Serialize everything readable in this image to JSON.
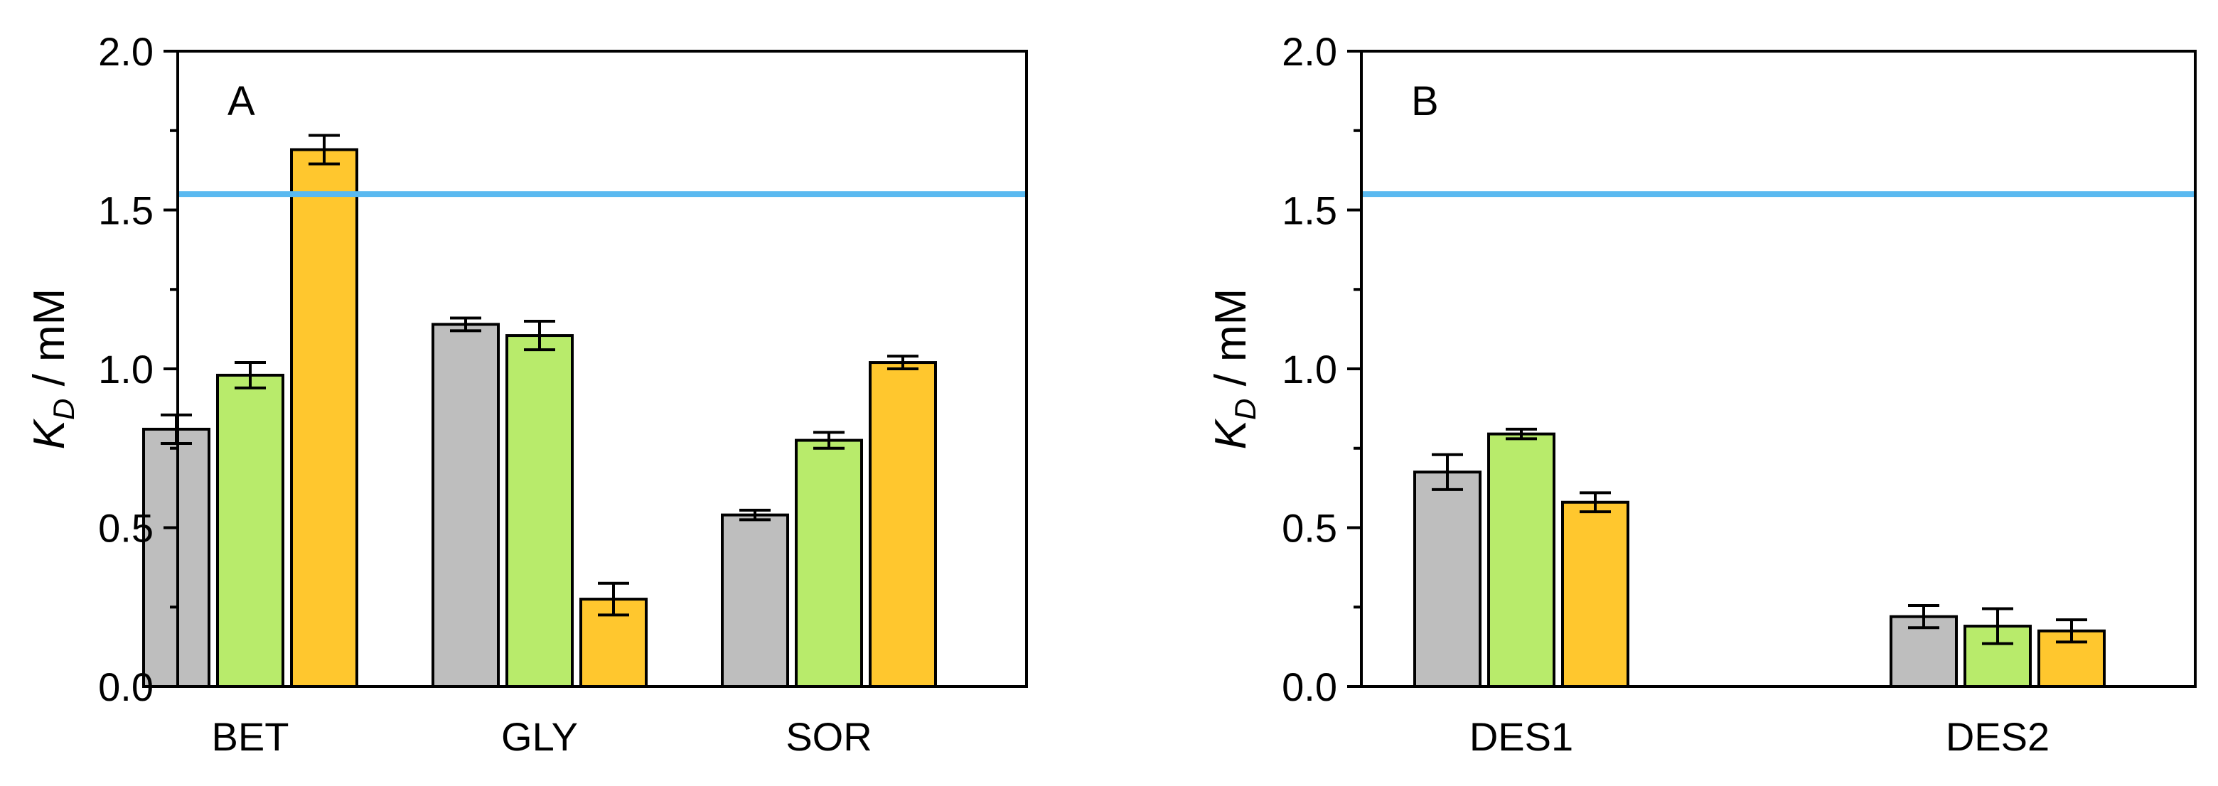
{
  "figure": {
    "colors": {
      "series": [
        "#bebebe",
        "#b8eb6b",
        "#ffc72e"
      ],
      "bar_outline": "#000000",
      "reference_line": "#5ab9f0"
    }
  },
  "chart_data": [
    {
      "type": "bar",
      "panel_label": "A",
      "ylabel_symbol": "K",
      "ylabel_subscript": "D",
      "ylabel_unit": " / mM",
      "ylim": [
        0,
        2.0
      ],
      "yticks": [
        0.0,
        0.5,
        1.0,
        1.5,
        2.0
      ],
      "ytick_labels": [
        "0.0",
        "0.5",
        "1.0",
        "1.5",
        "2.0"
      ],
      "categories": [
        "BET",
        "GLY",
        "SOR"
      ],
      "reference_line": 1.55,
      "series": [
        {
          "name": "gray",
          "values": [
            0.81,
            1.14,
            0.54
          ],
          "errors": [
            0.045,
            0.02,
            0.015
          ]
        },
        {
          "name": "green",
          "values": [
            0.98,
            1.105,
            0.775
          ],
          "errors": [
            0.04,
            0.045,
            0.025
          ]
        },
        {
          "name": "yellow",
          "values": [
            1.69,
            0.275,
            1.02
          ],
          "errors": [
            0.045,
            0.05,
            0.02
          ]
        }
      ]
    },
    {
      "type": "bar",
      "panel_label": "B",
      "ylabel_symbol": "K",
      "ylabel_subscript": "D",
      "ylabel_unit": " / mM",
      "ylim": [
        0,
        2.0
      ],
      "yticks": [
        0.0,
        0.5,
        1.0,
        1.5,
        2.0
      ],
      "ytick_labels": [
        "0.0",
        "0.5",
        "1.0",
        "1.5",
        "2.0"
      ],
      "categories": [
        "DES1",
        "DES2"
      ],
      "reference_line": 1.55,
      "series": [
        {
          "name": "gray",
          "values": [
            0.675,
            0.22
          ],
          "errors": [
            0.055,
            0.035
          ]
        },
        {
          "name": "green",
          "values": [
            0.795,
            0.19
          ],
          "errors": [
            0.015,
            0.055
          ]
        },
        {
          "name": "yellow",
          "values": [
            0.58,
            0.175
          ],
          "errors": [
            0.03,
            0.035
          ]
        }
      ]
    }
  ]
}
